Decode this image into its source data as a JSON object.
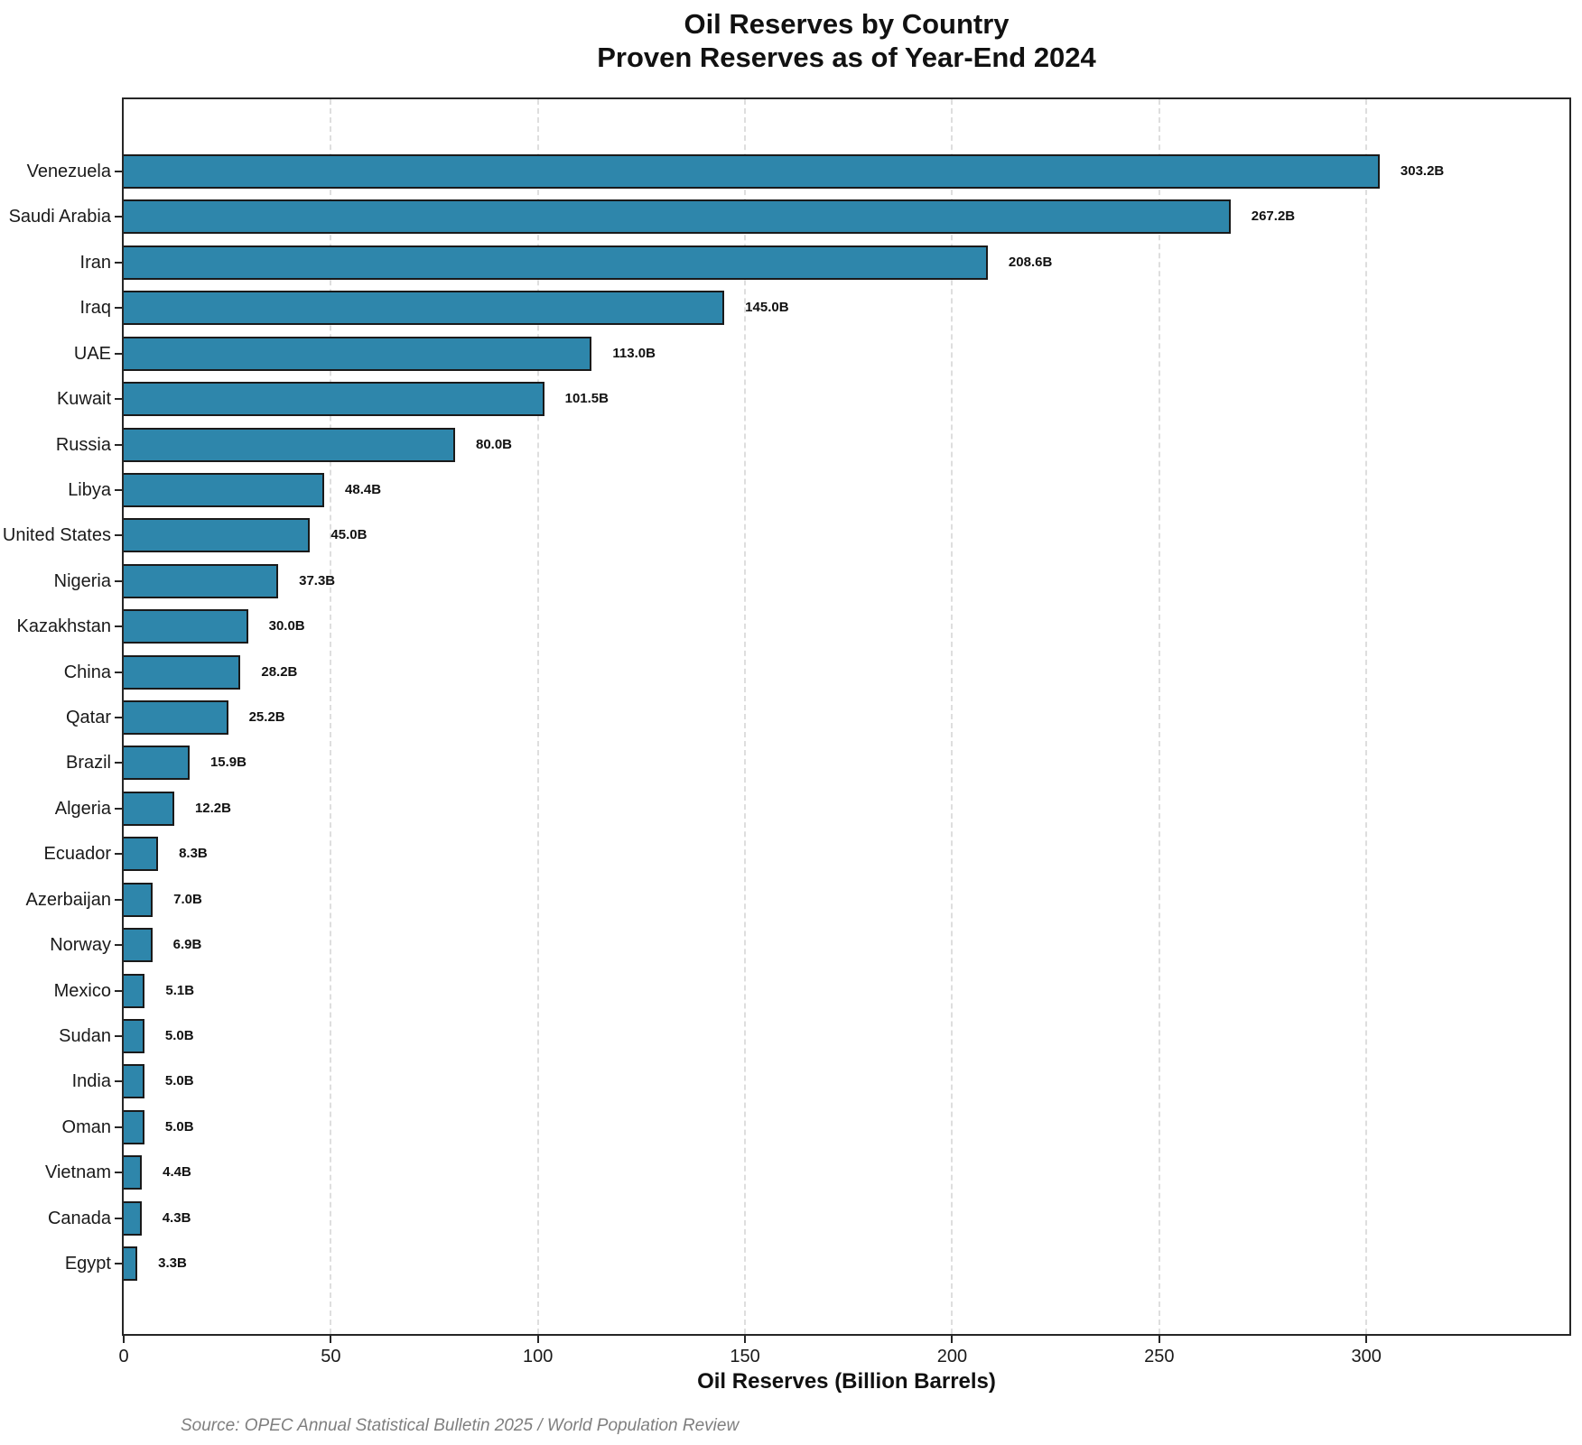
{
  "header": {
    "title": "Oil Reserves by Country",
    "subtitle": "Proven Reserves as of Year-End 2024"
  },
  "footer": {
    "source": "Source: OPEC Annual Statistical Bulletin 2025 / World Population Review"
  },
  "chart_data": {
    "type": "bar",
    "orientation": "horizontal",
    "title": "Oil Reserves by Country",
    "subtitle": "Proven Reserves as of Year-End 2024",
    "xlabel": "Oil Reserves (Billion Barrels)",
    "ylabel": "",
    "xlim": [
      0,
      349
    ],
    "xticks": [
      0,
      50,
      100,
      150,
      200,
      250,
      300
    ],
    "grid": "vertical-dashed",
    "legend": "none",
    "colors": {
      "bar_fill": "#2E86AB",
      "bar_edge": "#1a1a1a",
      "gridline": "#dedede",
      "axis": "#262626",
      "text": "#111111",
      "source_text": "#7f7f7f"
    },
    "categories": [
      "Venezuela",
      "Saudi Arabia",
      "Iran",
      "Iraq",
      "UAE",
      "Kuwait",
      "Russia",
      "Libya",
      "United States",
      "Nigeria",
      "Kazakhstan",
      "China",
      "Qatar",
      "Brazil",
      "Algeria",
      "Ecuador",
      "Azerbaijan",
      "Norway",
      "Mexico",
      "Sudan",
      "India",
      "Oman",
      "Vietnam",
      "Canada",
      "Egypt"
    ],
    "values": [
      303.2,
      267.2,
      208.6,
      145.0,
      113.0,
      101.5,
      80.0,
      48.4,
      45.0,
      37.3,
      30.0,
      28.2,
      25.2,
      15.9,
      12.2,
      8.3,
      7.0,
      6.9,
      5.1,
      5.0,
      5.0,
      5.0,
      4.4,
      4.3,
      3.3
    ],
    "value_labels": [
      "303.2B",
      "267.2B",
      "208.6B",
      "145.0B",
      "113.0B",
      "101.5B",
      "80.0B",
      "48.4B",
      "45.0B",
      "37.3B",
      "30.0B",
      "28.2B",
      "25.2B",
      "15.9B",
      "12.2B",
      "8.3B",
      "7.0B",
      "6.9B",
      "5.1B",
      "5.0B",
      "5.0B",
      "5.0B",
      "4.4B",
      "4.3B",
      "3.3B"
    ]
  }
}
